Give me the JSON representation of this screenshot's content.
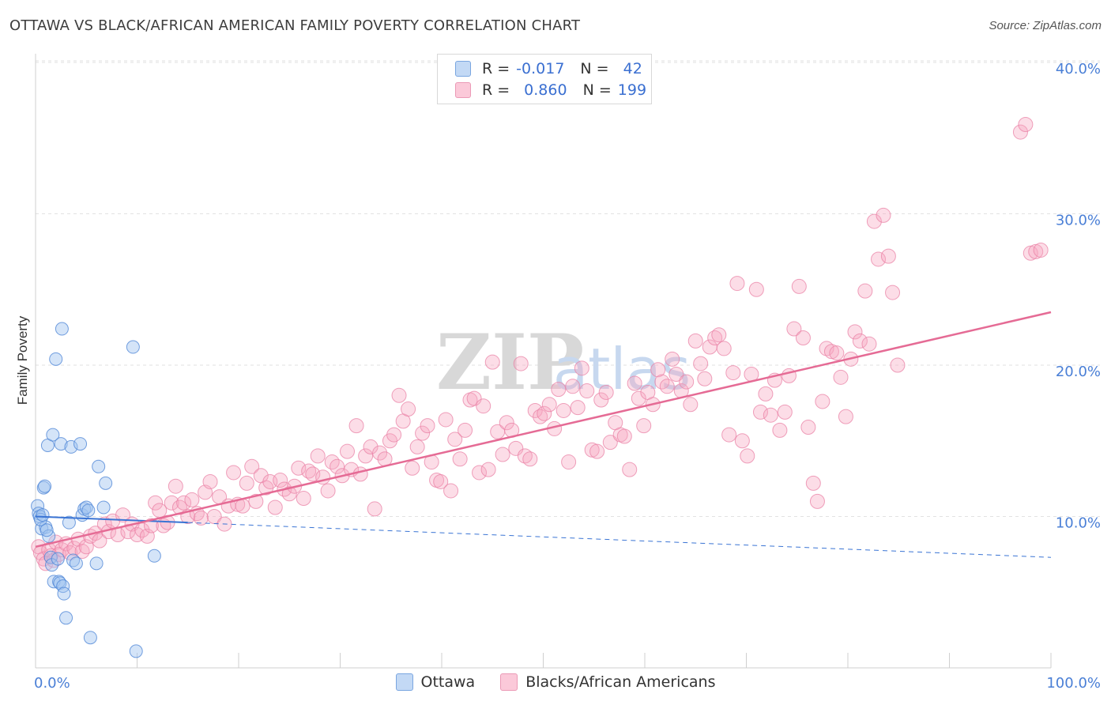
{
  "title": "OTTAWA VS BLACK/AFRICAN AMERICAN FAMILY POVERTY CORRELATION CHART",
  "source": "Source: ZipAtlas.com",
  "watermark": {
    "zip": "ZIP",
    "atlas": "atlas"
  },
  "legend": {
    "rows": [
      {
        "r_label": "R =",
        "r_value": "-0.017",
        "n_label": "N =",
        "n_value": "42",
        "color": "#a9c8f0"
      },
      {
        "r_label": "R =",
        "r_value": "0.860",
        "n_label": "N =",
        "n_value": "199",
        "color": "#f6b5c9"
      }
    ]
  },
  "bottom_legend": [
    {
      "label": "Ottawa",
      "color": "#a9c8f0"
    },
    {
      "label": "Blacks/African Americans",
      "color": "#f6b5c9"
    }
  ],
  "chart_data": {
    "type": "scatter",
    "xlabel": "",
    "ylabel": "Family Poverty",
    "xlim": [
      0,
      100
    ],
    "ylim": [
      0,
      40
    ],
    "x_tick_labels": [
      "0.0%",
      "100.0%"
    ],
    "y_ticks": [
      10,
      20,
      30,
      40
    ],
    "y_tick_labels": [
      "10.0%",
      "20.0%",
      "30.0%",
      "40.0%"
    ],
    "grid": true,
    "colors": {
      "ottawa": "#5b92e0",
      "black": "#ec8fae",
      "ottawa_line": "#3a74d4",
      "black_line": "#e56b95"
    },
    "series": [
      {
        "name": "Ottawa",
        "trend": {
          "x0": 0,
          "y0": 10.0,
          "x1": 15,
          "y1": 9.6,
          "dashed_to_x": 100,
          "dashed_y": 7.3
        },
        "points": [
          [
            0.2,
            10.7
          ],
          [
            0.3,
            10.2
          ],
          [
            0.4,
            10.0
          ],
          [
            0.6,
            9.2
          ],
          [
            0.8,
            11.9
          ],
          [
            0.9,
            12.0
          ],
          [
            1.0,
            9.3
          ],
          [
            1.2,
            14.7
          ],
          [
            1.3,
            8.7
          ],
          [
            1.5,
            7.3
          ],
          [
            1.6,
            6.8
          ],
          [
            1.7,
            15.4
          ],
          [
            1.8,
            5.7
          ],
          [
            2.0,
            20.4
          ],
          [
            2.2,
            7.2
          ],
          [
            2.3,
            5.7
          ],
          [
            2.4,
            5.6
          ],
          [
            2.5,
            14.8
          ],
          [
            2.6,
            22.4
          ],
          [
            2.7,
            5.4
          ],
          [
            2.8,
            4.9
          ],
          [
            3.0,
            3.3
          ],
          [
            3.3,
            9.6
          ],
          [
            3.5,
            14.6
          ],
          [
            3.7,
            7.1
          ],
          [
            4.0,
            6.9
          ],
          [
            4.4,
            14.8
          ],
          [
            4.6,
            10.1
          ],
          [
            4.8,
            10.5
          ],
          [
            5.0,
            10.6
          ],
          [
            5.2,
            10.4
          ],
          [
            5.4,
            2.0
          ],
          [
            6.0,
            6.9
          ],
          [
            6.2,
            13.3
          ],
          [
            6.7,
            10.6
          ],
          [
            6.9,
            12.2
          ],
          [
            9.6,
            21.2
          ],
          [
            9.9,
            1.1
          ],
          [
            11.7,
            7.4
          ],
          [
            0.5,
            9.8
          ],
          [
            1.1,
            9.1
          ],
          [
            0.7,
            10.1
          ]
        ]
      },
      {
        "name": "Blacks/African Americans",
        "trend": {
          "x0": 0,
          "y0": 8.0,
          "x1": 100,
          "y1": 23.5
        },
        "points": [
          [
            0.3,
            8.0
          ],
          [
            0.5,
            7.6
          ],
          [
            0.8,
            7.2
          ],
          [
            1.0,
            6.9
          ],
          [
            1.3,
            7.8
          ],
          [
            1.5,
            7.4
          ],
          [
            1.8,
            7.1
          ],
          [
            2.0,
            8.3
          ],
          [
            2.3,
            7.5
          ],
          [
            2.6,
            7.8
          ],
          [
            3.0,
            8.2
          ],
          [
            3.4,
            7.6
          ],
          [
            3.8,
            7.9
          ],
          [
            4.2,
            8.5
          ],
          [
            4.6,
            7.7
          ],
          [
            5.0,
            8.0
          ],
          [
            5.4,
            8.7
          ],
          [
            5.9,
            8.9
          ],
          [
            6.3,
            8.4
          ],
          [
            6.8,
            9.5
          ],
          [
            7.2,
            9.0
          ],
          [
            7.6,
            9.7
          ],
          [
            8.1,
            8.8
          ],
          [
            8.6,
            10.1
          ],
          [
            9.1,
            9.0
          ],
          [
            9.5,
            9.5
          ],
          [
            10.0,
            8.8
          ],
          [
            10.5,
            9.1
          ],
          [
            11.0,
            8.7
          ],
          [
            11.4,
            9.4
          ],
          [
            11.8,
            10.9
          ],
          [
            12.2,
            10.4
          ],
          [
            12.6,
            9.4
          ],
          [
            13.0,
            9.6
          ],
          [
            13.4,
            10.9
          ],
          [
            13.8,
            12.0
          ],
          [
            14.2,
            10.6
          ],
          [
            14.6,
            10.9
          ],
          [
            15.0,
            10.0
          ],
          [
            15.4,
            11.1
          ],
          [
            15.9,
            10.2
          ],
          [
            16.3,
            9.9
          ],
          [
            16.7,
            11.6
          ],
          [
            17.2,
            12.3
          ],
          [
            17.6,
            10.0
          ],
          [
            18.1,
            11.3
          ],
          [
            18.6,
            9.5
          ],
          [
            19.0,
            10.7
          ],
          [
            19.5,
            12.9
          ],
          [
            19.9,
            10.8
          ],
          [
            20.4,
            10.7
          ],
          [
            20.8,
            12.2
          ],
          [
            21.3,
            13.3
          ],
          [
            21.7,
            11.0
          ],
          [
            22.2,
            12.7
          ],
          [
            22.7,
            11.9
          ],
          [
            23.1,
            12.3
          ],
          [
            23.6,
            10.6
          ],
          [
            24.1,
            12.4
          ],
          [
            24.5,
            11.8
          ],
          [
            25.0,
            11.5
          ],
          [
            25.5,
            12.0
          ],
          [
            25.9,
            13.2
          ],
          [
            26.4,
            11.2
          ],
          [
            26.9,
            13.0
          ],
          [
            27.3,
            12.8
          ],
          [
            27.8,
            14.0
          ],
          [
            28.3,
            12.6
          ],
          [
            28.8,
            11.7
          ],
          [
            29.2,
            13.6
          ],
          [
            29.7,
            13.3
          ],
          [
            30.2,
            12.7
          ],
          [
            30.7,
            14.3
          ],
          [
            31.1,
            13.1
          ],
          [
            31.6,
            16.0
          ],
          [
            32.0,
            12.8
          ],
          [
            32.5,
            14.0
          ],
          [
            33.0,
            14.6
          ],
          [
            33.4,
            10.5
          ],
          [
            33.9,
            14.2
          ],
          [
            34.4,
            13.8
          ],
          [
            34.9,
            15.0
          ],
          [
            35.3,
            15.4
          ],
          [
            35.8,
            18.0
          ],
          [
            36.2,
            16.3
          ],
          [
            36.7,
            17.1
          ],
          [
            37.1,
            13.2
          ],
          [
            37.6,
            14.6
          ],
          [
            38.1,
            15.5
          ],
          [
            38.6,
            16.0
          ],
          [
            39.0,
            13.6
          ],
          [
            39.5,
            12.4
          ],
          [
            39.9,
            12.3
          ],
          [
            40.4,
            16.4
          ],
          [
            40.9,
            11.7
          ],
          [
            41.3,
            15.1
          ],
          [
            41.8,
            13.8
          ],
          [
            42.3,
            15.7
          ],
          [
            42.8,
            17.7
          ],
          [
            43.2,
            17.8
          ],
          [
            43.7,
            12.9
          ],
          [
            44.1,
            17.3
          ],
          [
            44.6,
            13.1
          ],
          [
            45.0,
            20.2
          ],
          [
            45.5,
            15.6
          ],
          [
            46.0,
            14.1
          ],
          [
            46.4,
            16.2
          ],
          [
            46.9,
            15.7
          ],
          [
            47.3,
            14.5
          ],
          [
            47.8,
            20.1
          ],
          [
            48.2,
            14.0
          ],
          [
            48.7,
            13.8
          ],
          [
            49.2,
            17.0
          ],
          [
            49.7,
            16.6
          ],
          [
            50.1,
            16.8
          ],
          [
            50.6,
            17.4
          ],
          [
            51.1,
            15.8
          ],
          [
            51.5,
            18.4
          ],
          [
            52.0,
            17.0
          ],
          [
            52.5,
            13.6
          ],
          [
            52.9,
            18.6
          ],
          [
            53.4,
            17.2
          ],
          [
            53.8,
            19.8
          ],
          [
            54.3,
            18.3
          ],
          [
            54.8,
            14.4
          ],
          [
            55.3,
            14.3
          ],
          [
            55.7,
            17.7
          ],
          [
            56.2,
            18.2
          ],
          [
            56.6,
            14.9
          ],
          [
            57.1,
            16.2
          ],
          [
            57.6,
            15.4
          ],
          [
            58.0,
            15.3
          ],
          [
            58.5,
            13.1
          ],
          [
            59.0,
            18.8
          ],
          [
            59.4,
            17.8
          ],
          [
            59.9,
            16.0
          ],
          [
            60.3,
            18.2
          ],
          [
            60.8,
            17.4
          ],
          [
            61.3,
            19.7
          ],
          [
            61.7,
            18.9
          ],
          [
            62.2,
            18.6
          ],
          [
            62.7,
            20.4
          ],
          [
            63.1,
            19.4
          ],
          [
            63.6,
            18.3
          ],
          [
            64.1,
            18.9
          ],
          [
            64.5,
            17.4
          ],
          [
            65.0,
            21.6
          ],
          [
            65.5,
            20.1
          ],
          [
            65.9,
            19.1
          ],
          [
            66.4,
            21.2
          ],
          [
            66.9,
            21.8
          ],
          [
            67.3,
            22.0
          ],
          [
            67.8,
            21.1
          ],
          [
            68.3,
            15.4
          ],
          [
            68.7,
            19.5
          ],
          [
            69.1,
            25.4
          ],
          [
            69.6,
            15.0
          ],
          [
            70.1,
            14.0
          ],
          [
            70.5,
            19.4
          ],
          [
            71.0,
            25.0
          ],
          [
            71.4,
            16.9
          ],
          [
            71.9,
            18.1
          ],
          [
            72.4,
            16.7
          ],
          [
            72.8,
            19.0
          ],
          [
            73.3,
            15.7
          ],
          [
            73.8,
            16.9
          ],
          [
            74.2,
            19.3
          ],
          [
            74.7,
            22.4
          ],
          [
            75.2,
            25.2
          ],
          [
            75.6,
            21.8
          ],
          [
            76.1,
            15.9
          ],
          [
            76.6,
            12.2
          ],
          [
            77.0,
            11.0
          ],
          [
            77.5,
            17.6
          ],
          [
            77.9,
            21.1
          ],
          [
            78.4,
            20.9
          ],
          [
            78.9,
            20.8
          ],
          [
            79.3,
            19.2
          ],
          [
            79.8,
            16.6
          ],
          [
            80.3,
            20.4
          ],
          [
            80.7,
            22.2
          ],
          [
            81.2,
            21.6
          ],
          [
            81.7,
            24.9
          ],
          [
            82.1,
            21.4
          ],
          [
            82.6,
            29.5
          ],
          [
            83.0,
            27.0
          ],
          [
            83.5,
            29.9
          ],
          [
            84.0,
            27.2
          ],
          [
            84.4,
            24.8
          ],
          [
            84.9,
            20.0
          ],
          [
            97.0,
            35.4
          ],
          [
            97.5,
            35.9
          ],
          [
            98.0,
            27.4
          ],
          [
            98.5,
            27.5
          ],
          [
            99.0,
            27.6
          ]
        ]
      }
    ]
  }
}
